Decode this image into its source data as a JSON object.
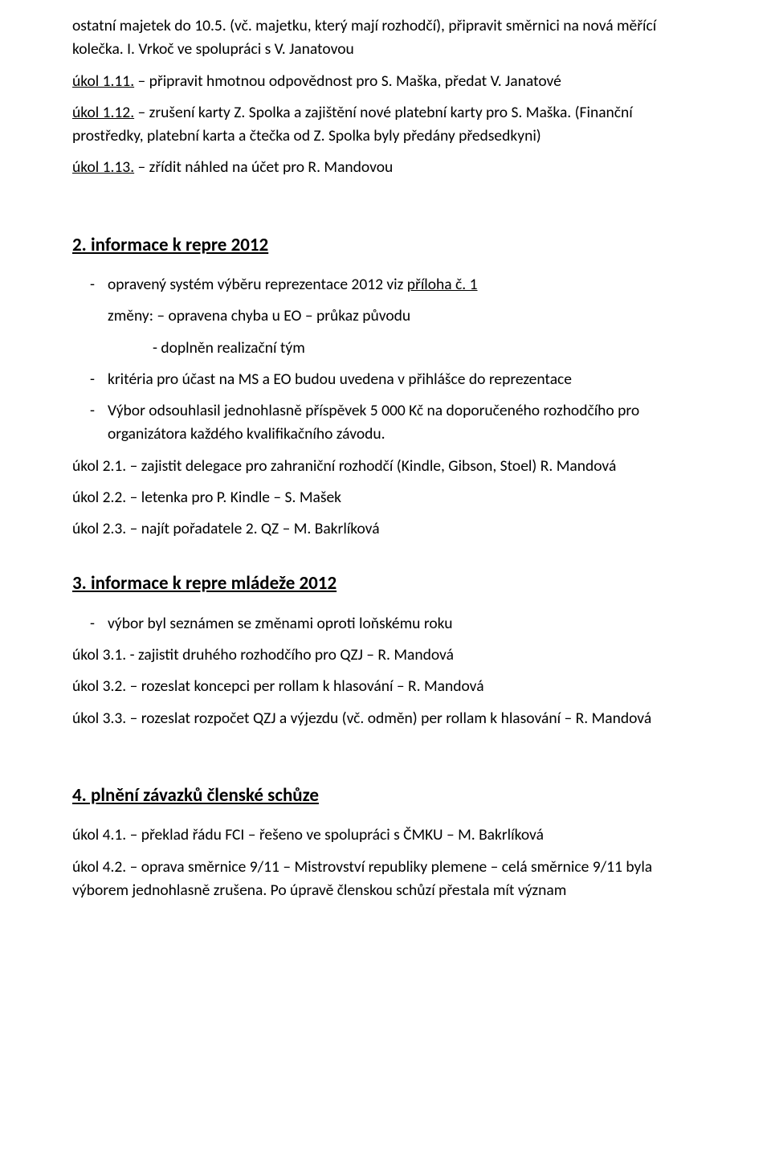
{
  "intro": {
    "p1a": "ostatní majetek do 10.5. (vč. majetku, který mají rozhodčí), připravit směrnici na nová měřící kolečka. I. Vrkoč ve spolupráci s V. Janatovou",
    "t11_label": "úkol 1.11.",
    "t11_text": " – připravit hmotnou odpovědnost pro S. Maška, předat V. Janatové",
    "t12_label": "úkol 1.12.",
    "t12_text": " – zrušení karty Z. Spolka a zajištění nové platební karty pro S. Maška. (Finanční prostředky, platební karta a čtečka od Z. Spolka byly předány předsedkyni)",
    "t13_label": "úkol 1.13.",
    "t13_text": " – zřídit náhled na účet pro R. Mandovou"
  },
  "s2": {
    "title": "2. informace k repre 2012 ",
    "b1a": "opravený systém výběru reprezentace 2012 viz ",
    "b1b": "příloha č. 1",
    "line_changes": "změny: – opravena chyba u EO – průkaz původu",
    "line_team": "- doplněn realizační tým",
    "b2": "kritéria pro účast na MS a EO budou uvedena v přihlášce do reprezentace",
    "b3": "Výbor odsouhlasil jednohlasně příspěvek 5 000 Kč na doporučeného rozhodčího pro organizátora každého kvalifikačního závodu.",
    "t21": "úkol 2.1. – zajistit delegace pro zahraniční rozhodčí (Kindle, Gibson, Stoel)  R. Mandová",
    "t22": "úkol 2.2. – letenka pro P. Kindle – S. Mašek",
    "t23": "úkol 2.3. – najít pořadatele 2. QZ – M. Bakrlíková"
  },
  "s3": {
    "title": "3. informace k repre mládeže 2012 ",
    "b1": "výbor byl seznámen se změnami oproti loňskému roku",
    "t31": "úkol 3.1. - zajistit druhého rozhodčího pro QZJ – R. Mandová",
    "t32": "úkol 3.2. – rozeslat koncepci per rollam k hlasování – R. Mandová",
    "t33": "úkol 3.3. – rozeslat rozpočet QZJ a výjezdu (vč. odměn) per rollam k hlasování – R. Mandová"
  },
  "s4": {
    "title": "4. plnění závazků členské schůze ",
    "t41": "úkol 4.1. – překlad řádu FCI – řešeno ve spolupráci s ČMKU – M. Bakrlíková",
    "t42": "úkol 4.2. – oprava směrnice 9/11 – Mistrovství republiky plemene – celá směrnice 9/11 byla výborem jednohlasně zrušena. Po úpravě členskou schůzí přestala mít význam"
  }
}
